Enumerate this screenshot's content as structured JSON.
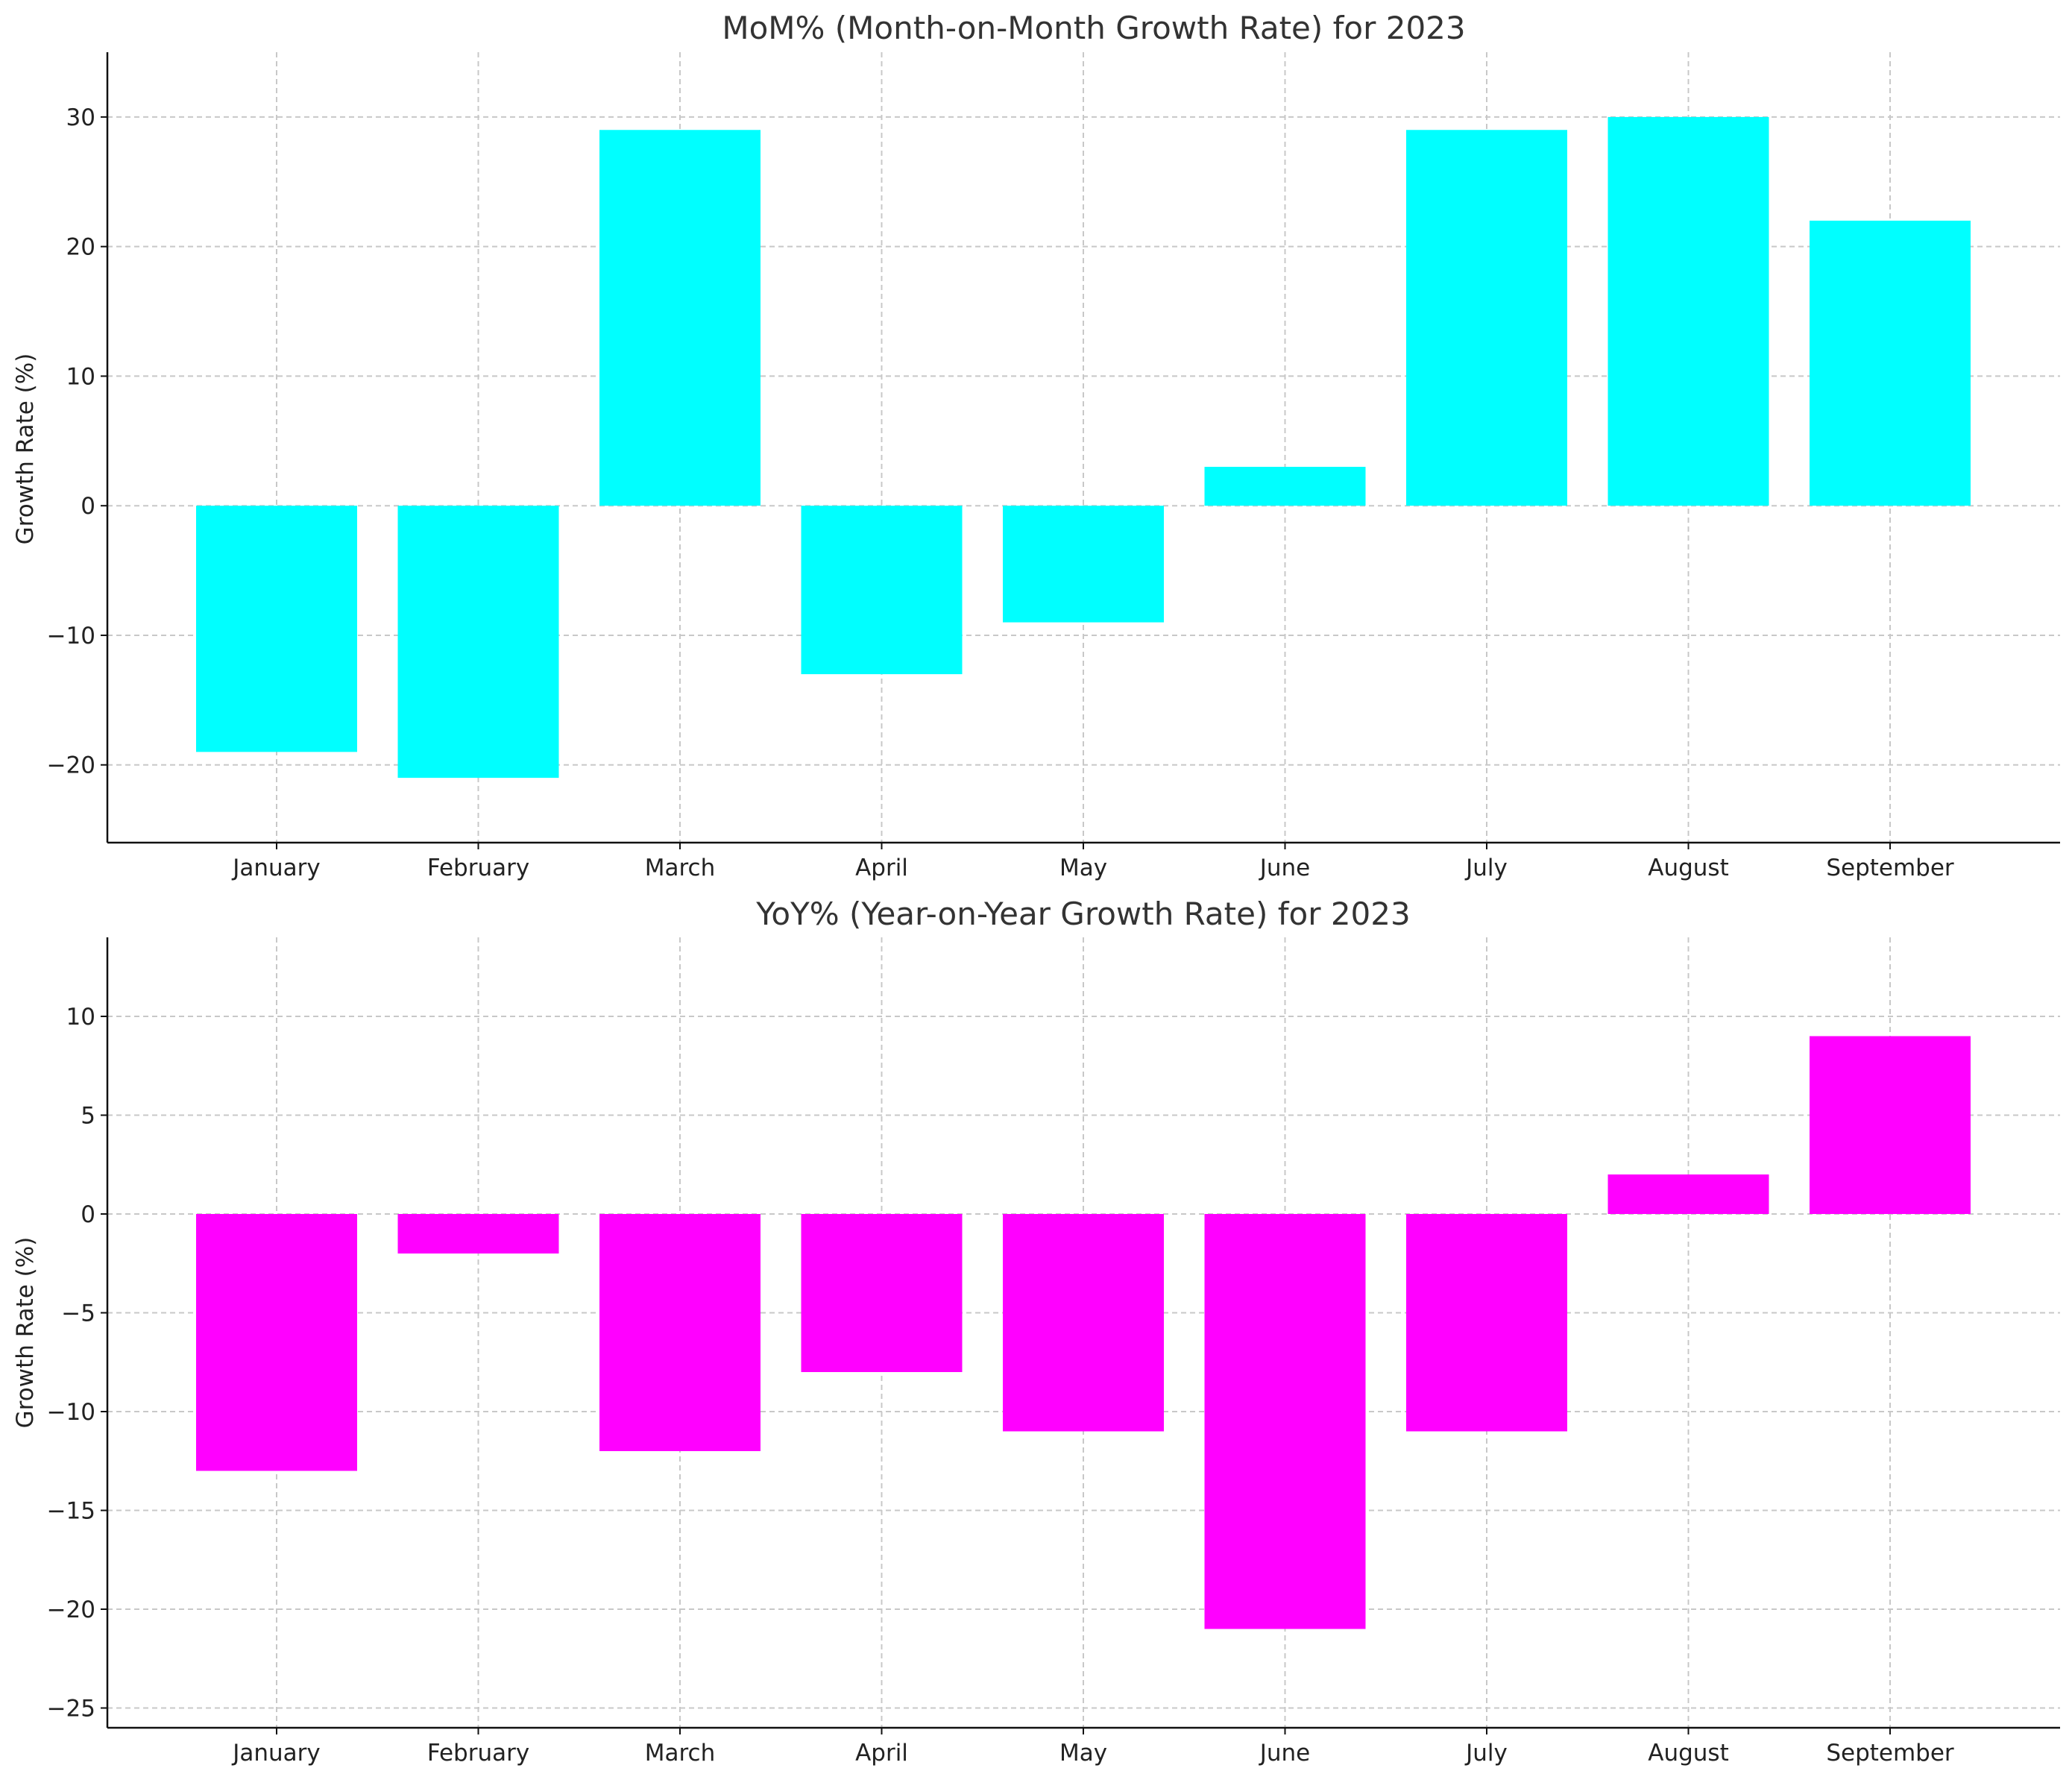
{
  "chart_data": [
    {
      "type": "bar",
      "title": "MoM% (Month-on-Month Growth Rate) for 2023",
      "xlabel": "",
      "ylabel": "Growth Rate (%)",
      "categories": [
        "January",
        "February",
        "March",
        "April",
        "May",
        "June",
        "July",
        "August",
        "September"
      ],
      "values": [
        -19,
        -21,
        29,
        -13,
        -9,
        3,
        29,
        30,
        22
      ],
      "ylim": [
        -26,
        35
      ],
      "yticks": [
        -20,
        -10,
        0,
        10,
        20,
        30
      ],
      "ytick_labels": [
        "−20",
        "−10",
        "0",
        "10",
        "20",
        "30"
      ],
      "color": "#00ffff",
      "grid": true
    },
    {
      "type": "bar",
      "title": "YoY% (Year-on-Year Growth Rate) for 2023",
      "xlabel": "",
      "ylabel": "Growth Rate (%)",
      "categories": [
        "January",
        "February",
        "March",
        "April",
        "May",
        "June",
        "July",
        "August",
        "September"
      ],
      "values": [
        -13,
        -2,
        -12,
        -8,
        -11,
        -21,
        -11,
        2,
        9
      ],
      "ylim": [
        -26,
        14
      ],
      "yticks": [
        -25,
        -20,
        -15,
        -10,
        -5,
        0,
        5,
        10
      ],
      "ytick_labels": [
        "−25",
        "−20",
        "−15",
        "−10",
        "−5",
        "0",
        "5",
        "10"
      ],
      "color": "#ff00ff",
      "grid": true
    }
  ]
}
